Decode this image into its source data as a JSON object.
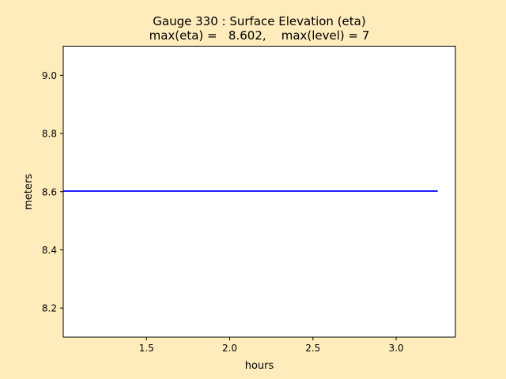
{
  "colors": {
    "background": "#ffecbc",
    "plot_bg": "#ffffff",
    "line": "#0000ff"
  },
  "chart_data": {
    "type": "line",
    "title": "Gauge 330 : Surface Elevation (eta)",
    "subtitle": "max(eta) =   8.602,    max(level) = 7",
    "xlabel": "hours",
    "ylabel": "meters",
    "xlim": [
      1.0,
      3.356
    ],
    "ylim": [
      8.1,
      9.1
    ],
    "xticks": [
      1.5,
      2.0,
      2.5,
      3.0
    ],
    "xtick_labels": [
      "1.5",
      "2.0",
      "2.5",
      "3.0"
    ],
    "yticks": [
      8.2,
      8.4,
      8.6,
      8.8,
      9.0
    ],
    "ytick_labels": [
      "8.2",
      "8.4",
      "8.6",
      "8.8",
      "9.0"
    ],
    "grid": false,
    "series": [
      {
        "name": "eta",
        "color": "#0000ff",
        "x": [
          1.0,
          3.25
        ],
        "y": [
          8.602,
          8.602
        ]
      }
    ]
  }
}
